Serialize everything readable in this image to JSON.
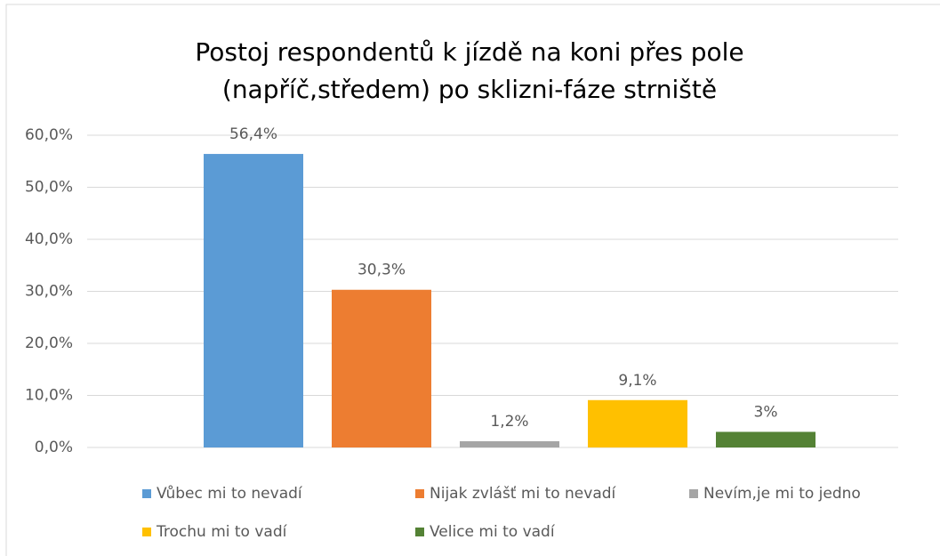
{
  "chart_data": {
    "type": "bar",
    "title": "Postoj respondentů k jízdě na koni přes pole (napříč,středem) po sklizni-fáze strniště",
    "categories": [
      null
    ],
    "series": [
      {
        "name": "Vůbec mi to nevadí",
        "color": "#5b9bd5",
        "values": [
          56.4
        ],
        "value_labels": [
          "56,4%"
        ]
      },
      {
        "name": "Nijak zvlášť mi to nevadí",
        "color": "#ed7d31",
        "values": [
          30.3
        ],
        "value_labels": [
          "30,3%"
        ]
      },
      {
        "name": "Nevím,je mi to jedno",
        "color": "#a5a5a5",
        "values": [
          1.2
        ],
        "value_labels": [
          "1,2%"
        ]
      },
      {
        "name": "Trochu mi to vadí",
        "color": "#ffc000",
        "values": [
          9.1
        ],
        "value_labels": [
          "9,1%"
        ]
      },
      {
        "name": "Velice mi to vadí",
        "color": "#548235",
        "values": [
          3
        ],
        "value_labels": [
          "3%"
        ]
      }
    ],
    "ylim": [
      0,
      60
    ],
    "yticks": [
      {
        "value": 0,
        "label": "0,0%"
      },
      {
        "value": 10,
        "label": "10,0%"
      },
      {
        "value": 20,
        "label": "20,0%"
      },
      {
        "value": 30,
        "label": "30,0%"
      },
      {
        "value": 40,
        "label": "40,0%"
      },
      {
        "value": 50,
        "label": "50,0%"
      },
      {
        "value": 60,
        "label": "60,0%"
      }
    ],
    "grid": true,
    "legend": "bottom"
  }
}
